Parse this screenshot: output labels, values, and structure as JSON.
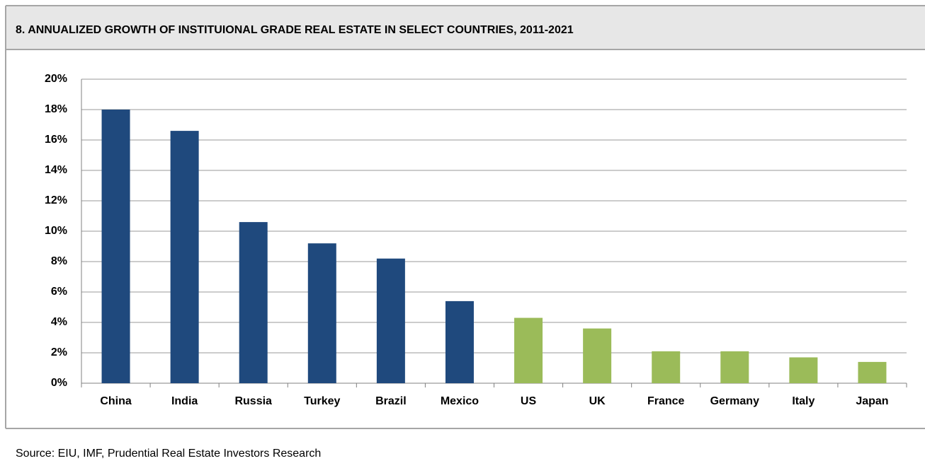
{
  "chart_data": {
    "type": "bar",
    "title": "8. ANNUALIZED GROWTH OF INSTITUIONAL GRADE REAL ESTATE IN SELECT COUNTRIES, 2011-2021",
    "categories": [
      "China",
      "India",
      "Russia",
      "Turkey",
      "Brazil",
      "Mexico",
      "US",
      "UK",
      "France",
      "Germany",
      "Italy",
      "Japan"
    ],
    "values": [
      18.0,
      16.6,
      10.6,
      9.2,
      8.2,
      5.4,
      4.3,
      3.6,
      2.1,
      2.1,
      1.7,
      1.4
    ],
    "colors": [
      "#1f497d",
      "#1f497d",
      "#1f497d",
      "#1f497d",
      "#1f497d",
      "#1f497d",
      "#9bbb59",
      "#9bbb59",
      "#9bbb59",
      "#9bbb59",
      "#9bbb59",
      "#9bbb59"
    ],
    "ylim": [
      0,
      20
    ],
    "yticks": [
      {
        "value": 0,
        "label": "0%"
      },
      {
        "value": 2,
        "label": "2%"
      },
      {
        "value": 4,
        "label": "4%"
      },
      {
        "value": 6,
        "label": "6%"
      },
      {
        "value": 8,
        "label": "8%"
      },
      {
        "value": 10,
        "label": "10%"
      },
      {
        "value": 12,
        "label": "12%"
      },
      {
        "value": 14,
        "label": "14%"
      },
      {
        "value": 16,
        "label": "16%"
      },
      {
        "value": 18,
        "label": "18%"
      },
      {
        "value": 20,
        "label": "20%"
      }
    ],
    "grid": true,
    "source": "Source: EIU, IMF, Prudential Real Estate Investors Research"
  }
}
